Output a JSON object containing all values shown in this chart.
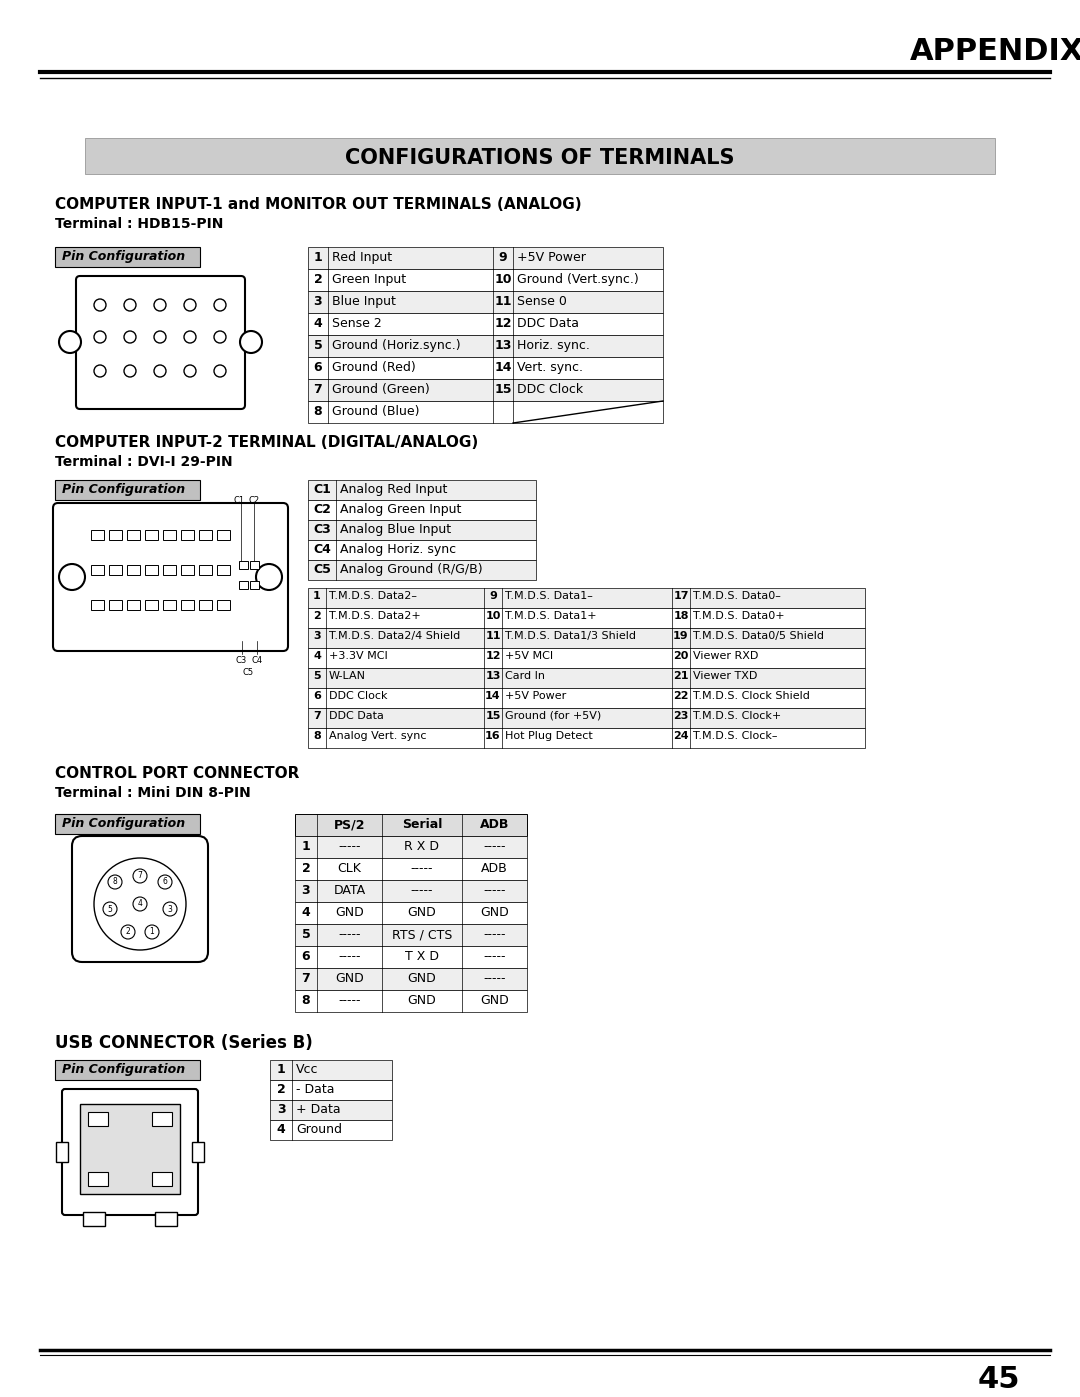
{
  "page_title": "APPENDIX",
  "main_title": "CONFIGURATIONS OF TERMINALS",
  "section1_title": "COMPUTER INPUT-1 and MONITOR OUT TERMINALS (ANALOG)",
  "section1_sub": "Terminal : HDB15-PIN",
  "section2_title": "COMPUTER INPUT-2 TERMINAL (DIGITAL/ANALOG)",
  "section2_sub": "Terminal : DVI-I 29-PIN",
  "section3_title": "CONTROL PORT CONNECTOR",
  "section3_sub": "Terminal : Mini DIN 8-PIN",
  "section4_title": "USB CONNECTOR (Series B)",
  "pin_config_label": "Pin Configuration",
  "table1_rows": [
    [
      "1",
      "Red Input",
      "9",
      "+5V Power"
    ],
    [
      "2",
      "Green Input",
      "10",
      "Ground (Vert.sync.)"
    ],
    [
      "3",
      "Blue Input",
      "11",
      "Sense 0"
    ],
    [
      "4",
      "Sense 2",
      "12",
      "DDC Data"
    ],
    [
      "5",
      "Ground (Horiz.sync.)",
      "13",
      "Horiz. sync."
    ],
    [
      "6",
      "Ground (Red)",
      "14",
      "Vert. sync."
    ],
    [
      "7",
      "Ground (Green)",
      "15",
      "DDC Clock"
    ],
    [
      "8",
      "Ground (Blue)",
      "",
      ""
    ]
  ],
  "table2_top_rows": [
    [
      "C1",
      "Analog Red Input"
    ],
    [
      "C2",
      "Analog Green Input"
    ],
    [
      "C3",
      "Analog Blue Input"
    ],
    [
      "C4",
      "Analog Horiz. sync"
    ],
    [
      "C5",
      "Analog Ground (R/G/B)"
    ]
  ],
  "table2_bot_rows": [
    [
      "1",
      "T.M.D.S. Data2–",
      "9",
      "T.M.D.S. Data1–",
      "17",
      "T.M.D.S. Data0–"
    ],
    [
      "2",
      "T.M.D.S. Data2+",
      "10",
      "T.M.D.S. Data1+",
      "18",
      "T.M.D.S. Data0+"
    ],
    [
      "3",
      "T.M.D.S. Data2/4 Shield",
      "11",
      "T.M.D.S. Data1/3 Shield",
      "19",
      "T.M.D.S. Data0/5 Shield"
    ],
    [
      "4",
      "+3.3V MCI",
      "12",
      "+5V MCI",
      "20",
      "Viewer RXD"
    ],
    [
      "5",
      "W-LAN",
      "13",
      "Card In",
      "21",
      "Viewer TXD"
    ],
    [
      "6",
      "DDC Clock",
      "14",
      "+5V Power",
      "22",
      "T.M.D.S. Clock Shield"
    ],
    [
      "7",
      "DDC Data",
      "15",
      "Ground (for +5V)",
      "23",
      "T.M.D.S. Clock+"
    ],
    [
      "8",
      "Analog Vert. sync",
      "16",
      "Hot Plug Detect",
      "24",
      "T.M.D.S. Clock–"
    ]
  ],
  "table3_headers": [
    "",
    "PS/2",
    "Serial",
    "ADB"
  ],
  "table3_rows": [
    [
      "1",
      "-----",
      "R X D",
      "-----"
    ],
    [
      "2",
      "CLK",
      "-----",
      "ADB"
    ],
    [
      "3",
      "DATA",
      "-----",
      "-----"
    ],
    [
      "4",
      "GND",
      "GND",
      "GND"
    ],
    [
      "5",
      "-----",
      "RTS / CTS",
      "-----"
    ],
    [
      "6",
      "-----",
      "T X D",
      "-----"
    ],
    [
      "7",
      "GND",
      "GND",
      "-----"
    ],
    [
      "8",
      "-----",
      "GND",
      "GND"
    ]
  ],
  "table4_rows": [
    [
      "1",
      "Vcc"
    ],
    [
      "2",
      "- Data"
    ],
    [
      "3",
      "+ Data"
    ],
    [
      "4",
      "Ground"
    ]
  ],
  "page_number": "45"
}
